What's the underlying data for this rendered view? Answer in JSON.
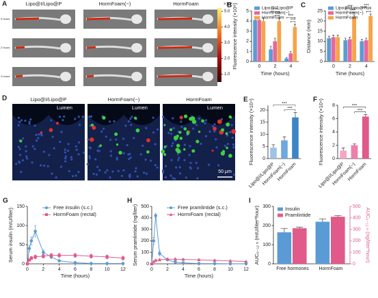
{
  "images": {
    "A": {
      "panel": "A",
      "columns": [
        "Lipo@I/Lipo@P",
        "HormFoam(−)",
        "HormFoam"
      ],
      "rows": [
        "0 hours",
        "2 hours",
        "4 hours"
      ],
      "colorbar": {
        "unit": "×10⁸",
        "ticks": [
          {
            "value": 5,
            "label": "5.0"
          },
          {
            "value": 4,
            "label": "4.0"
          },
          {
            "value": 3,
            "label": "3.0"
          },
          {
            "value": 2,
            "label": "2.0"
          },
          {
            "value": 1,
            "label": "1.0"
          }
        ],
        "lim": [
          0.5,
          5.2
        ]
      }
    },
    "D": {
      "panel": "D",
      "columns": [
        "Lipo@I/Lipo@P",
        "HormFoam(−)",
        "HormFoam"
      ],
      "lumen": [
        "Lumen",
        "Lumen",
        "Lumen"
      ],
      "scale_bar": "50 μm"
    }
  },
  "chart_data": [
    {
      "panel": "B",
      "type": "bar",
      "x_label": "Time (hours)",
      "y_label": "Fluorescence intensity (×10⁸)",
      "categories": [
        "0",
        "2",
        "4"
      ],
      "series": [
        {
          "name": "Lipo@I/Lipo@P",
          "color": "#5b9bd5",
          "values": [
            4.1,
            1.2,
            0.3
          ],
          "errors": [
            0.3,
            0.3,
            0.1
          ]
        },
        {
          "name": "HormFoam(−)",
          "color": "#e8679a",
          "values": [
            4.1,
            2.0,
            0.8
          ],
          "errors": [
            0.3,
            0.3,
            0.2
          ]
        },
        {
          "name": "HormFoam",
          "color": "#f5a44a",
          "values": [
            4.0,
            4.0,
            3.4
          ],
          "errors": [
            0.3,
            0.3,
            0.3
          ]
        }
      ],
      "ylim": [
        0,
        5
      ],
      "yticks": [
        0,
        1,
        2,
        3,
        4,
        5
      ],
      "annotations": [
        "***",
        "***",
        "***",
        "***"
      ]
    },
    {
      "panel": "C",
      "type": "bar",
      "x_label": "Time (hours)",
      "y_label": "Distance (mm)",
      "categories": [
        "0",
        "2",
        "4"
      ],
      "series": [
        {
          "name": "Lipo@I/Lipo@P",
          "color": "#5b9bd5",
          "values": [
            11.5,
            10.5,
            10
          ],
          "errors": [
            1,
            1,
            1
          ]
        },
        {
          "name": "HormFoam(−)",
          "color": "#e8679a",
          "values": [
            12,
            11,
            10.5
          ],
          "errors": [
            1,
            1,
            1
          ]
        },
        {
          "name": "HormFoam",
          "color": "#f5a44a",
          "values": [
            12,
            22,
            22.5
          ],
          "errors": [
            1,
            1,
            1
          ]
        }
      ],
      "ylim": [
        0,
        25
      ],
      "yticks": [
        0,
        5,
        10,
        15,
        20,
        25
      ],
      "annotations": [
        "***",
        "***",
        "***",
        "***"
      ]
    },
    {
      "panel": "E",
      "type": "bar",
      "y_label": "Fluorescence intensity (×10⁴)",
      "categories": [
        "Lipo@I/Lipo@P",
        "HormFoam(−)",
        "HormFoam"
      ],
      "values": [
        4.5,
        7.5,
        17
      ],
      "errors": [
        1.2,
        1.5,
        2
      ],
      "colors": [
        "#9dc3e6",
        "#6fa8dc",
        "#3d85c6"
      ],
      "ylim": [
        0,
        22
      ],
      "yticks": [
        0,
        5,
        10,
        15,
        20
      ],
      "annotations": [
        "***",
        "***"
      ]
    },
    {
      "panel": "F",
      "type": "bar",
      "y_label": "Fluorescence intensity (×10⁴)",
      "categories": [
        "Lipo@I/Lipo@P",
        "HormFoam(−)",
        "HormFoam"
      ],
      "values": [
        1.2,
        2.0,
        6.3
      ],
      "errors": [
        0.4,
        0.2,
        0.3
      ],
      "colors": [
        "#f4a6c4",
        "#ee7fab",
        "#e05a8a"
      ],
      "ylim": [
        0,
        8
      ],
      "yticks": [
        0,
        2,
        4,
        6,
        8
      ],
      "annotations": [
        "***",
        "***"
      ]
    },
    {
      "panel": "G",
      "type": "line",
      "x_label": "Time (hours)",
      "y_label": "Serum insulin (mIU/liter)",
      "x": [
        0,
        0.25,
        0.5,
        1,
        2,
        3,
        4,
        6,
        8,
        10,
        12
      ],
      "series": [
        {
          "name": "Free insulin (s.c.)",
          "color": "#5b9bd5",
          "marker": "circle",
          "values": [
            0,
            40,
            60,
            85,
            30,
            18,
            8,
            3,
            1,
            1,
            1
          ],
          "errors": [
            0,
            8,
            10,
            15,
            6,
            4,
            2,
            1,
            1,
            1,
            1
          ]
        },
        {
          "name": "HormFoam (rectal)",
          "color": "#e05a8a",
          "marker": "square",
          "values": [
            0,
            10,
            15,
            18,
            20,
            22,
            22,
            22,
            20,
            18,
            15
          ],
          "errors": [
            0,
            3,
            4,
            5,
            5,
            5,
            6,
            5,
            5,
            5,
            5
          ]
        }
      ],
      "xlim": [
        0,
        12
      ],
      "xticks": [
        0,
        2,
        4,
        6,
        8,
        10,
        12
      ],
      "ylim": [
        0,
        150
      ],
      "yticks": [
        0,
        50,
        100,
        150
      ]
    },
    {
      "panel": "H",
      "type": "line",
      "x_label": "Time (hours)",
      "y_label": "Serum pramlintide (ng/liter)",
      "x": [
        0,
        0.25,
        0.5,
        1,
        2,
        3,
        4,
        6,
        8,
        10,
        12
      ],
      "series": [
        {
          "name": "Free pramlintide (s.c.)",
          "color": "#5b9bd5",
          "marker": "circle",
          "values": [
            0,
            200,
            420,
            90,
            35,
            15,
            8,
            3,
            2,
            1,
            1
          ],
          "errors": [
            0,
            30,
            20,
            20,
            8,
            4,
            2,
            1,
            1,
            1,
            1
          ]
        },
        {
          "name": "HormFoam (rectal)",
          "color": "#e05a8a",
          "marker": "triangle",
          "values": [
            0,
            20,
            30,
            35,
            40,
            40,
            38,
            35,
            30,
            25,
            20
          ],
          "errors": [
            0,
            5,
            8,
            10,
            10,
            10,
            8,
            8,
            6,
            6,
            5
          ]
        }
      ],
      "xlim": [
        0,
        12
      ],
      "xticks": [
        0,
        2,
        4,
        6,
        8,
        10,
        12
      ],
      "ylim": [
        0,
        500
      ],
      "yticks": [
        0,
        100,
        200,
        300,
        400,
        500
      ]
    },
    {
      "panel": "I",
      "type": "bar",
      "y_label": "AUC₀₋₁₂ ₕ (mIU/liter*hour)",
      "y2_label": "AUC₀₋₁₂ ₕ (ng/liter*hour)",
      "categories": [
        "Free hormones",
        "HormFoam"
      ],
      "series": [
        {
          "name": "Insulin",
          "color": "#5b9bd5",
          "values": [
            165,
            220
          ],
          "errors": [
            20,
            15
          ]
        },
        {
          "name": "Pramlintide",
          "color": "#e05a8a",
          "axis": "y2",
          "values": [
            310,
            410
          ],
          "errors": [
            10,
            10
          ]
        }
      ],
      "ylim": [
        0,
        300
      ],
      "yticks": [
        0,
        100,
        200,
        300
      ],
      "y2lim": [
        0,
        500
      ],
      "y2ticks": [
        0,
        100,
        200,
        300,
        400,
        500
      ]
    }
  ]
}
